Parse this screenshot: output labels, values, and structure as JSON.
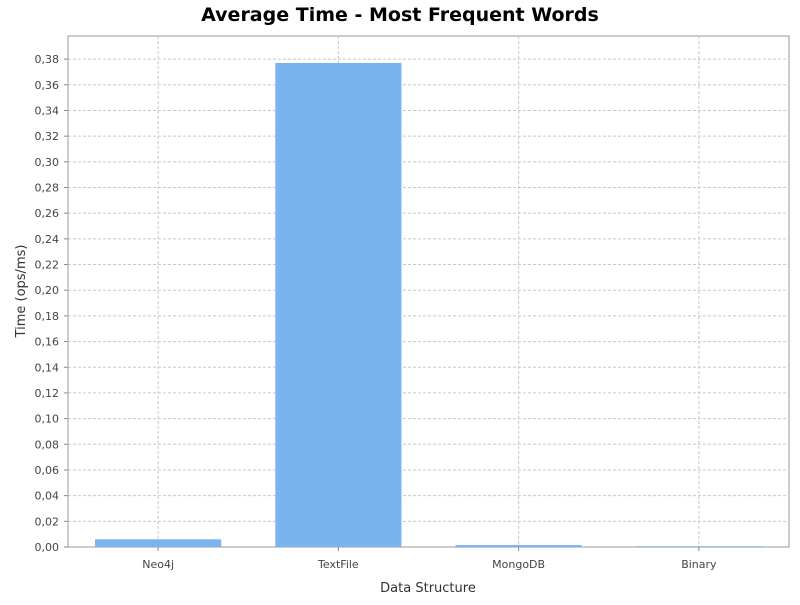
{
  "chart_data": {
    "type": "bar",
    "title": "Average Time - Most Frequent Words",
    "xlabel": "Data Structure",
    "ylabel": "Time (ops/ms)",
    "categories": [
      "Neo4j",
      "TextFile",
      "MongoDB",
      "Binary"
    ],
    "values": [
      0.006,
      0.377,
      0.0015,
      0.0005
    ],
    "ylim": [
      0,
      0.398
    ],
    "yticks": [
      0,
      0.02,
      0.04,
      0.06,
      0.08,
      0.1,
      0.12,
      0.14,
      0.16,
      0.18,
      0.2,
      0.22,
      0.24,
      0.26,
      0.28,
      0.3,
      0.32,
      0.34,
      0.36,
      0.38
    ],
    "ytick_labels": [
      "0,00",
      "0,02",
      "0,04",
      "0,06",
      "0,08",
      "0,10",
      "0,12",
      "0,14",
      "0,16",
      "0,18",
      "0,20",
      "0,22",
      "0,24",
      "0,26",
      "0,28",
      "0,30",
      "0,32",
      "0,34",
      "0,36",
      "0,38"
    ],
    "grid": true,
    "bar_color": "#7ab4f0",
    "grid_color": "#c8c8c8",
    "axis_color": "#888888"
  }
}
